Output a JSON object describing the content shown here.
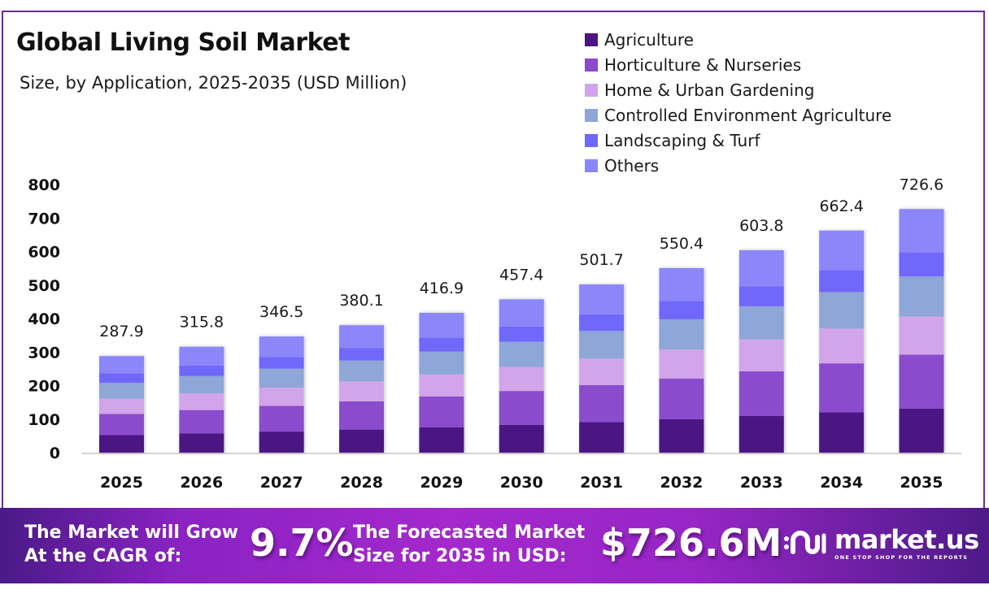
{
  "header": {
    "title": "Global Living Soil Market",
    "subtitle": "Size, by Application, 2025-2035 (USD Million)"
  },
  "legend": [
    {
      "label": "Agriculture",
      "color": "#4b1584"
    },
    {
      "label": "Horticulture & Nurseries",
      "color": "#8a4bcc"
    },
    {
      "label": "Home & Urban Gardening",
      "color": "#d2a5ea"
    },
    {
      "label": "Controlled Environment Agriculture",
      "color": "#8ea6d8"
    },
    {
      "label": "Landscaping & Turf",
      "color": "#7068fa"
    },
    {
      "label": "Others",
      "color": "#8c86fb"
    }
  ],
  "chart_data": {
    "type": "bar",
    "stacked": true,
    "title": "Global Living Soil Market",
    "subtitle": "Size, by Application, 2025-2035 (USD Million)",
    "xlabel": "",
    "ylabel": "",
    "ylim": [
      0,
      800
    ],
    "yticks": [
      0,
      100,
      200,
      300,
      400,
      500,
      600,
      700,
      800
    ],
    "grid": false,
    "legend_position": "top-right",
    "categories": [
      "2025",
      "2026",
      "2027",
      "2028",
      "2029",
      "2030",
      "2031",
      "2032",
      "2033",
      "2034",
      "2035"
    ],
    "totals": [
      "287.9",
      "315.8",
      "346.5",
      "380.1",
      "416.9",
      "457.4",
      "501.7",
      "550.4",
      "603.8",
      "662.4",
      "726.6"
    ],
    "series": [
      {
        "name": "Agriculture",
        "color": "#4b1584",
        "values": [
          52.1,
          57.2,
          62.7,
          68.8,
          75.5,
          82.8,
          90.8,
          99.6,
          109.3,
          119.9,
          131.5
        ]
      },
      {
        "name": "Horticulture & Nurseries",
        "color": "#8a4bcc",
        "values": [
          63.6,
          69.8,
          76.6,
          84.0,
          92.1,
          101.1,
          110.9,
          121.6,
          133.4,
          146.4,
          160.6
        ]
      },
      {
        "name": "Home & Urban Gardening",
        "color": "#d2a5ea",
        "values": [
          45.2,
          49.6,
          54.4,
          59.7,
          65.5,
          71.8,
          78.8,
          86.4,
          94.8,
          104.0,
          114.1
        ]
      },
      {
        "name": "Controlled Environment Agriculture",
        "color": "#8ea6d8",
        "values": [
          47.2,
          51.8,
          56.8,
          62.3,
          68.4,
          75.0,
          82.3,
          90.3,
          99.0,
          108.6,
          119.2
        ]
      },
      {
        "name": "Landscaping & Turf",
        "color": "#7068fa",
        "values": [
          28.5,
          31.3,
          34.3,
          37.6,
          41.3,
          45.3,
          49.7,
          54.5,
          59.8,
          65.6,
          71.9
        ]
      },
      {
        "name": "Others",
        "color": "#8c86fb",
        "values": [
          51.3,
          56.1,
          61.7,
          67.7,
          74.1,
          81.4,
          89.2,
          98.0,
          107.5,
          117.9,
          129.3
        ]
      }
    ]
  },
  "banner": {
    "cagr_label_line1": "The Market will Grow",
    "cagr_label_line2": "At the CAGR of:",
    "cagr_value": "9.7%",
    "forecast_label_line1": "The Forecasted Market",
    "forecast_label_line2": "Size for 2035 in USD:",
    "forecast_value": "$726.6M",
    "logo_name": "market.us",
    "logo_tagline": "ONE STOP SHOP FOR THE REPORTS"
  }
}
